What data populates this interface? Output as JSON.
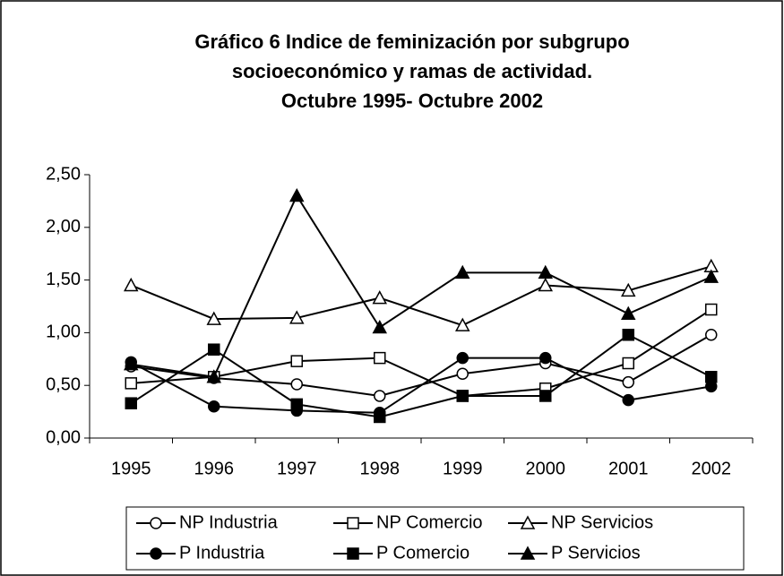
{
  "chart_data": {
    "type": "line",
    "title": [
      "Gráfico 6 Indice de feminización por subgrupo",
      "socioeconómico y ramas de actividad.",
      "Octubre 1995- Octubre 2002"
    ],
    "categories": [
      "1995",
      "1996",
      "1997",
      "1998",
      "1999",
      "2000",
      "2001",
      "2002"
    ],
    "ylim": [
      0,
      2.5
    ],
    "yticks": [
      {
        "value": 0,
        "label": "0,00"
      },
      {
        "value": 0.5,
        "label": "0,50"
      },
      {
        "value": 1,
        "label": "1,00"
      },
      {
        "value": 1.5,
        "label": "1,50"
      },
      {
        "value": 2,
        "label": "2,00"
      },
      {
        "value": 2.5,
        "label": "2,50"
      }
    ],
    "grid": false,
    "legend": "bottom",
    "series": [
      {
        "name": "NP Industria",
        "color": "#000000",
        "marker": "circle",
        "filled": false,
        "values": [
          0.68,
          0.57,
          0.51,
          0.4,
          0.61,
          0.71,
          0.53,
          0.98
        ]
      },
      {
        "name": "NP Comercio",
        "color": "#000000",
        "marker": "square",
        "filled": false,
        "values": [
          0.52,
          0.58,
          0.73,
          0.76,
          0.4,
          0.47,
          0.71,
          1.22
        ]
      },
      {
        "name": "NP Servicios",
        "color": "#000000",
        "marker": "triangle",
        "filled": false,
        "values": [
          1.45,
          1.13,
          1.14,
          1.33,
          1.07,
          1.45,
          1.4,
          1.63
        ]
      },
      {
        "name": "P Industria",
        "color": "#000000",
        "marker": "circle",
        "filled": true,
        "values": [
          0.72,
          0.3,
          0.26,
          0.24,
          0.76,
          0.76,
          0.36,
          0.49
        ]
      },
      {
        "name": "P Comercio",
        "color": "#000000",
        "marker": "square",
        "filled": true,
        "values": [
          0.33,
          0.84,
          0.32,
          0.2,
          0.4,
          0.4,
          0.98,
          0.58
        ]
      },
      {
        "name": "P Servicios",
        "color": "#000000",
        "marker": "triangle",
        "filled": true,
        "values": [
          0.7,
          0.58,
          2.3,
          1.05,
          1.57,
          1.57,
          1.18,
          1.53
        ]
      }
    ]
  }
}
